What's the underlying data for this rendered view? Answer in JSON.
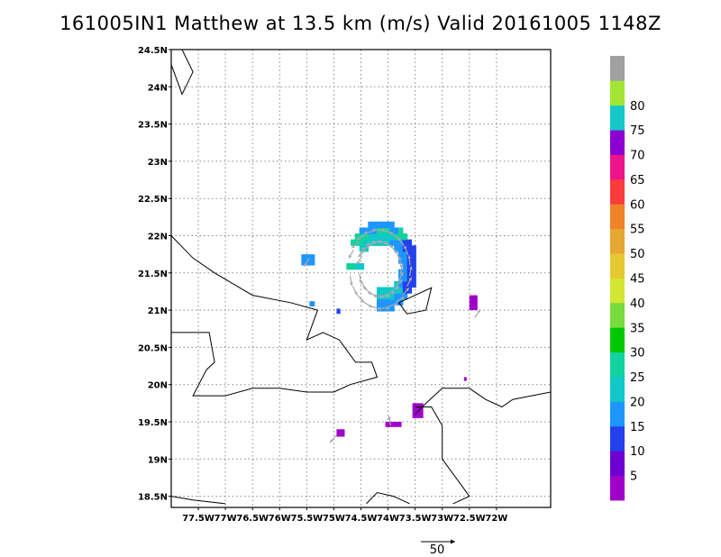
{
  "title": "161005IN1 Matthew at 13.5 km (m/s) Valid 20161005 1148Z",
  "map": {
    "lon_range": [
      -78.0,
      -71.0
    ],
    "lat_range": [
      18.35,
      24.5
    ],
    "lat_ticks": [
      {
        "v": 24.5,
        "label": "24.5N"
      },
      {
        "v": 24,
        "label": "24N"
      },
      {
        "v": 23.5,
        "label": "23.5N"
      },
      {
        "v": 23,
        "label": "23N"
      },
      {
        "v": 22.5,
        "label": "22.5N"
      },
      {
        "v": 22,
        "label": "22N"
      },
      {
        "v": 21.5,
        "label": "21.5N"
      },
      {
        "v": 21,
        "label": "21N"
      },
      {
        "v": 20.5,
        "label": "20.5N"
      },
      {
        "v": 20,
        "label": "20N"
      },
      {
        "v": 19.5,
        "label": "19.5N"
      },
      {
        "v": 19,
        "label": "19N"
      },
      {
        "v": 18.5,
        "label": "18.5N"
      }
    ],
    "lon_ticks": [
      {
        "v": -77.5,
        "label": "77.5W"
      },
      {
        "v": -77,
        "label": "77W"
      },
      {
        "v": -76.5,
        "label": "76.5W"
      },
      {
        "v": -76,
        "label": "76W"
      },
      {
        "v": -75.5,
        "label": "75.5W"
      },
      {
        "v": -75,
        "label": "75W"
      },
      {
        "v": -74.5,
        "label": "74.5W"
      },
      {
        "v": -74,
        "label": "74W"
      },
      {
        "v": -73.5,
        "label": "73.5W"
      },
      {
        "v": -73,
        "label": "73W"
      },
      {
        "v": -72.5,
        "label": "72.5W"
      },
      {
        "v": -72,
        "label": "72W"
      }
    ],
    "grid": true,
    "coastlines": [
      [
        [
          -78.0,
          24.5
        ],
        [
          -78.0,
          24.3
        ],
        [
          -77.8,
          23.9
        ],
        [
          -77.6,
          24.2
        ],
        [
          -77.8,
          24.5
        ]
      ],
      [
        [
          -78.0,
          22.0
        ],
        [
          -77.6,
          21.7
        ],
        [
          -77.2,
          21.5
        ],
        [
          -76.5,
          21.2
        ],
        [
          -75.8,
          21.1
        ],
        [
          -75.3,
          21.0
        ],
        [
          -75.5,
          20.6
        ],
        [
          -75.2,
          20.7
        ],
        [
          -74.9,
          20.6
        ],
        [
          -74.6,
          20.3
        ],
        [
          -74.3,
          20.3
        ],
        [
          -74.2,
          20.1
        ],
        [
          -74.7,
          20.0
        ],
        [
          -75.0,
          19.9
        ],
        [
          -75.5,
          19.9
        ],
        [
          -76.0,
          19.95
        ],
        [
          -76.5,
          19.95
        ],
        [
          -77.0,
          19.85
        ],
        [
          -77.6,
          19.85
        ],
        [
          -77.35,
          20.2
        ],
        [
          -77.2,
          20.3
        ],
        [
          -77.3,
          20.7
        ],
        [
          -78.0,
          20.7
        ]
      ],
      [
        [
          -73.8,
          21.1
        ],
        [
          -73.2,
          21.3
        ],
        [
          -73.3,
          21.0
        ],
        [
          -73.65,
          20.95
        ],
        [
          -73.8,
          21.1
        ]
      ],
      [
        [
          -73.5,
          19.6
        ],
        [
          -73.3,
          19.75
        ],
        [
          -73.0,
          19.95
        ],
        [
          -72.5,
          19.95
        ],
        [
          -72.2,
          19.8
        ],
        [
          -71.9,
          19.7
        ],
        [
          -71.7,
          19.8
        ],
        [
          -71.0,
          19.9
        ]
      ],
      [
        [
          -73.5,
          19.7
        ],
        [
          -73.2,
          19.7
        ],
        [
          -73.0,
          19.45
        ],
        [
          -73.0,
          19.0
        ],
        [
          -72.7,
          18.7
        ],
        [
          -72.5,
          18.5
        ],
        [
          -72.8,
          18.4
        ]
      ],
      [
        [
          -74.4,
          18.4
        ],
        [
          -74.2,
          18.55
        ],
        [
          -73.9,
          18.5
        ],
        [
          -73.6,
          18.4
        ]
      ],
      [
        [
          -78.0,
          18.5
        ],
        [
          -77.6,
          18.45
        ],
        [
          -77.0,
          18.4
        ]
      ]
    ]
  },
  "colorbar": {
    "labels": [
      "5",
      "10",
      "15",
      "20",
      "25",
      "30",
      "35",
      "40",
      "45",
      "50",
      "55",
      "60",
      "65",
      "70",
      "75",
      "80"
    ],
    "colors": [
      "#a000c8",
      "#6e00d2",
      "#2240ec",
      "#1e96ff",
      "#10c8c8",
      "#14d2a0",
      "#00c800",
      "#78dc3c",
      "#d2e632",
      "#e6c832",
      "#e6a832",
      "#f08228",
      "#fa3c3c",
      "#f0148c",
      "#8c00d2",
      "#14c8c8",
      "#a0e632",
      "#a0a0a0"
    ]
  },
  "vector_scale": {
    "label": "50"
  },
  "wind_field": {
    "rings": [
      {
        "lon_min": -74.75,
        "lon_max": -73.6,
        "lat_min": 21.6,
        "lat_max": 22.25,
        "start": 300,
        "end": 360
      },
      {
        "lon_min": -74.75,
        "lon_max": -73.6,
        "lat_min": 21.6,
        "lat_max": 22.25,
        "start": 0,
        "end": 30
      }
    ],
    "patches": [
      {
        "lon": -75.6,
        "lat": 21.6,
        "w": 0.25,
        "h": 0.15,
        "color": "#1e96ff"
      },
      {
        "lon": -75.45,
        "lat": 21.05,
        "w": 0.1,
        "h": 0.07,
        "color": "#1e96ff"
      },
      {
        "lon": -74.95,
        "lat": 20.95,
        "w": 0.07,
        "h": 0.07,
        "color": "#2240ec"
      },
      {
        "lon": -74.05,
        "lat": 19.43,
        "w": 0.3,
        "h": 0.07,
        "color": "#a000c8"
      },
      {
        "lon": -74.95,
        "lat": 19.3,
        "w": 0.15,
        "h": 0.1,
        "color": "#a000c8"
      },
      {
        "lon": -73.55,
        "lat": 19.55,
        "w": 0.2,
        "h": 0.2,
        "color": "#a000c8"
      },
      {
        "lon": -72.5,
        "lat": 21.0,
        "w": 0.15,
        "h": 0.2,
        "color": "#a000c8"
      },
      {
        "lon": -72.6,
        "lat": 20.05,
        "w": 0.05,
        "h": 0.05,
        "color": "#a000c8"
      }
    ]
  }
}
